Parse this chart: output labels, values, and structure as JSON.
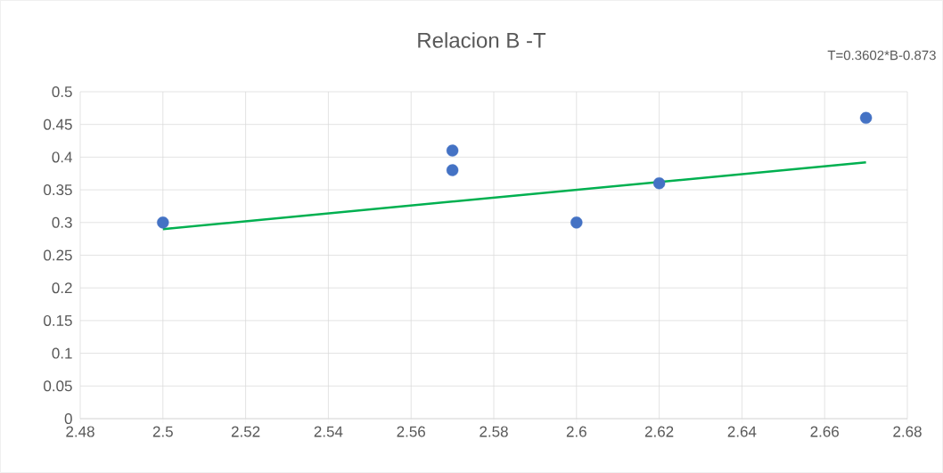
{
  "chart_data": {
    "type": "scatter",
    "title": "Relacion B -T",
    "annotations": [
      "T=0.3602*B-0.873"
    ],
    "series": [
      {
        "color": "#4472c4",
        "marker": "circle",
        "x": [
          2.5,
          2.57,
          2.57,
          2.6,
          2.62,
          2.67
        ],
        "values": [
          0.3,
          0.41,
          0.38,
          0.3,
          0.36,
          0.46
        ]
      },
      {
        "type": "line",
        "color": "#00b050",
        "marker": "none",
        "line_style": "solid",
        "x": [
          2.5,
          2.67
        ],
        "values": [
          0.29,
          0.392
        ]
      }
    ],
    "xlim": [
      2.48,
      2.68
    ],
    "xticks": [
      2.48,
      2.5,
      2.52,
      2.54,
      2.56,
      2.58,
      2.6,
      2.62,
      2.64,
      2.66,
      2.68
    ],
    "ylim": [
      0,
      0.5
    ],
    "yticks": [
      0,
      0.05,
      0.1,
      0.15,
      0.2,
      0.25,
      0.3,
      0.35,
      0.4,
      0.45,
      0.5
    ],
    "grid": true
  }
}
